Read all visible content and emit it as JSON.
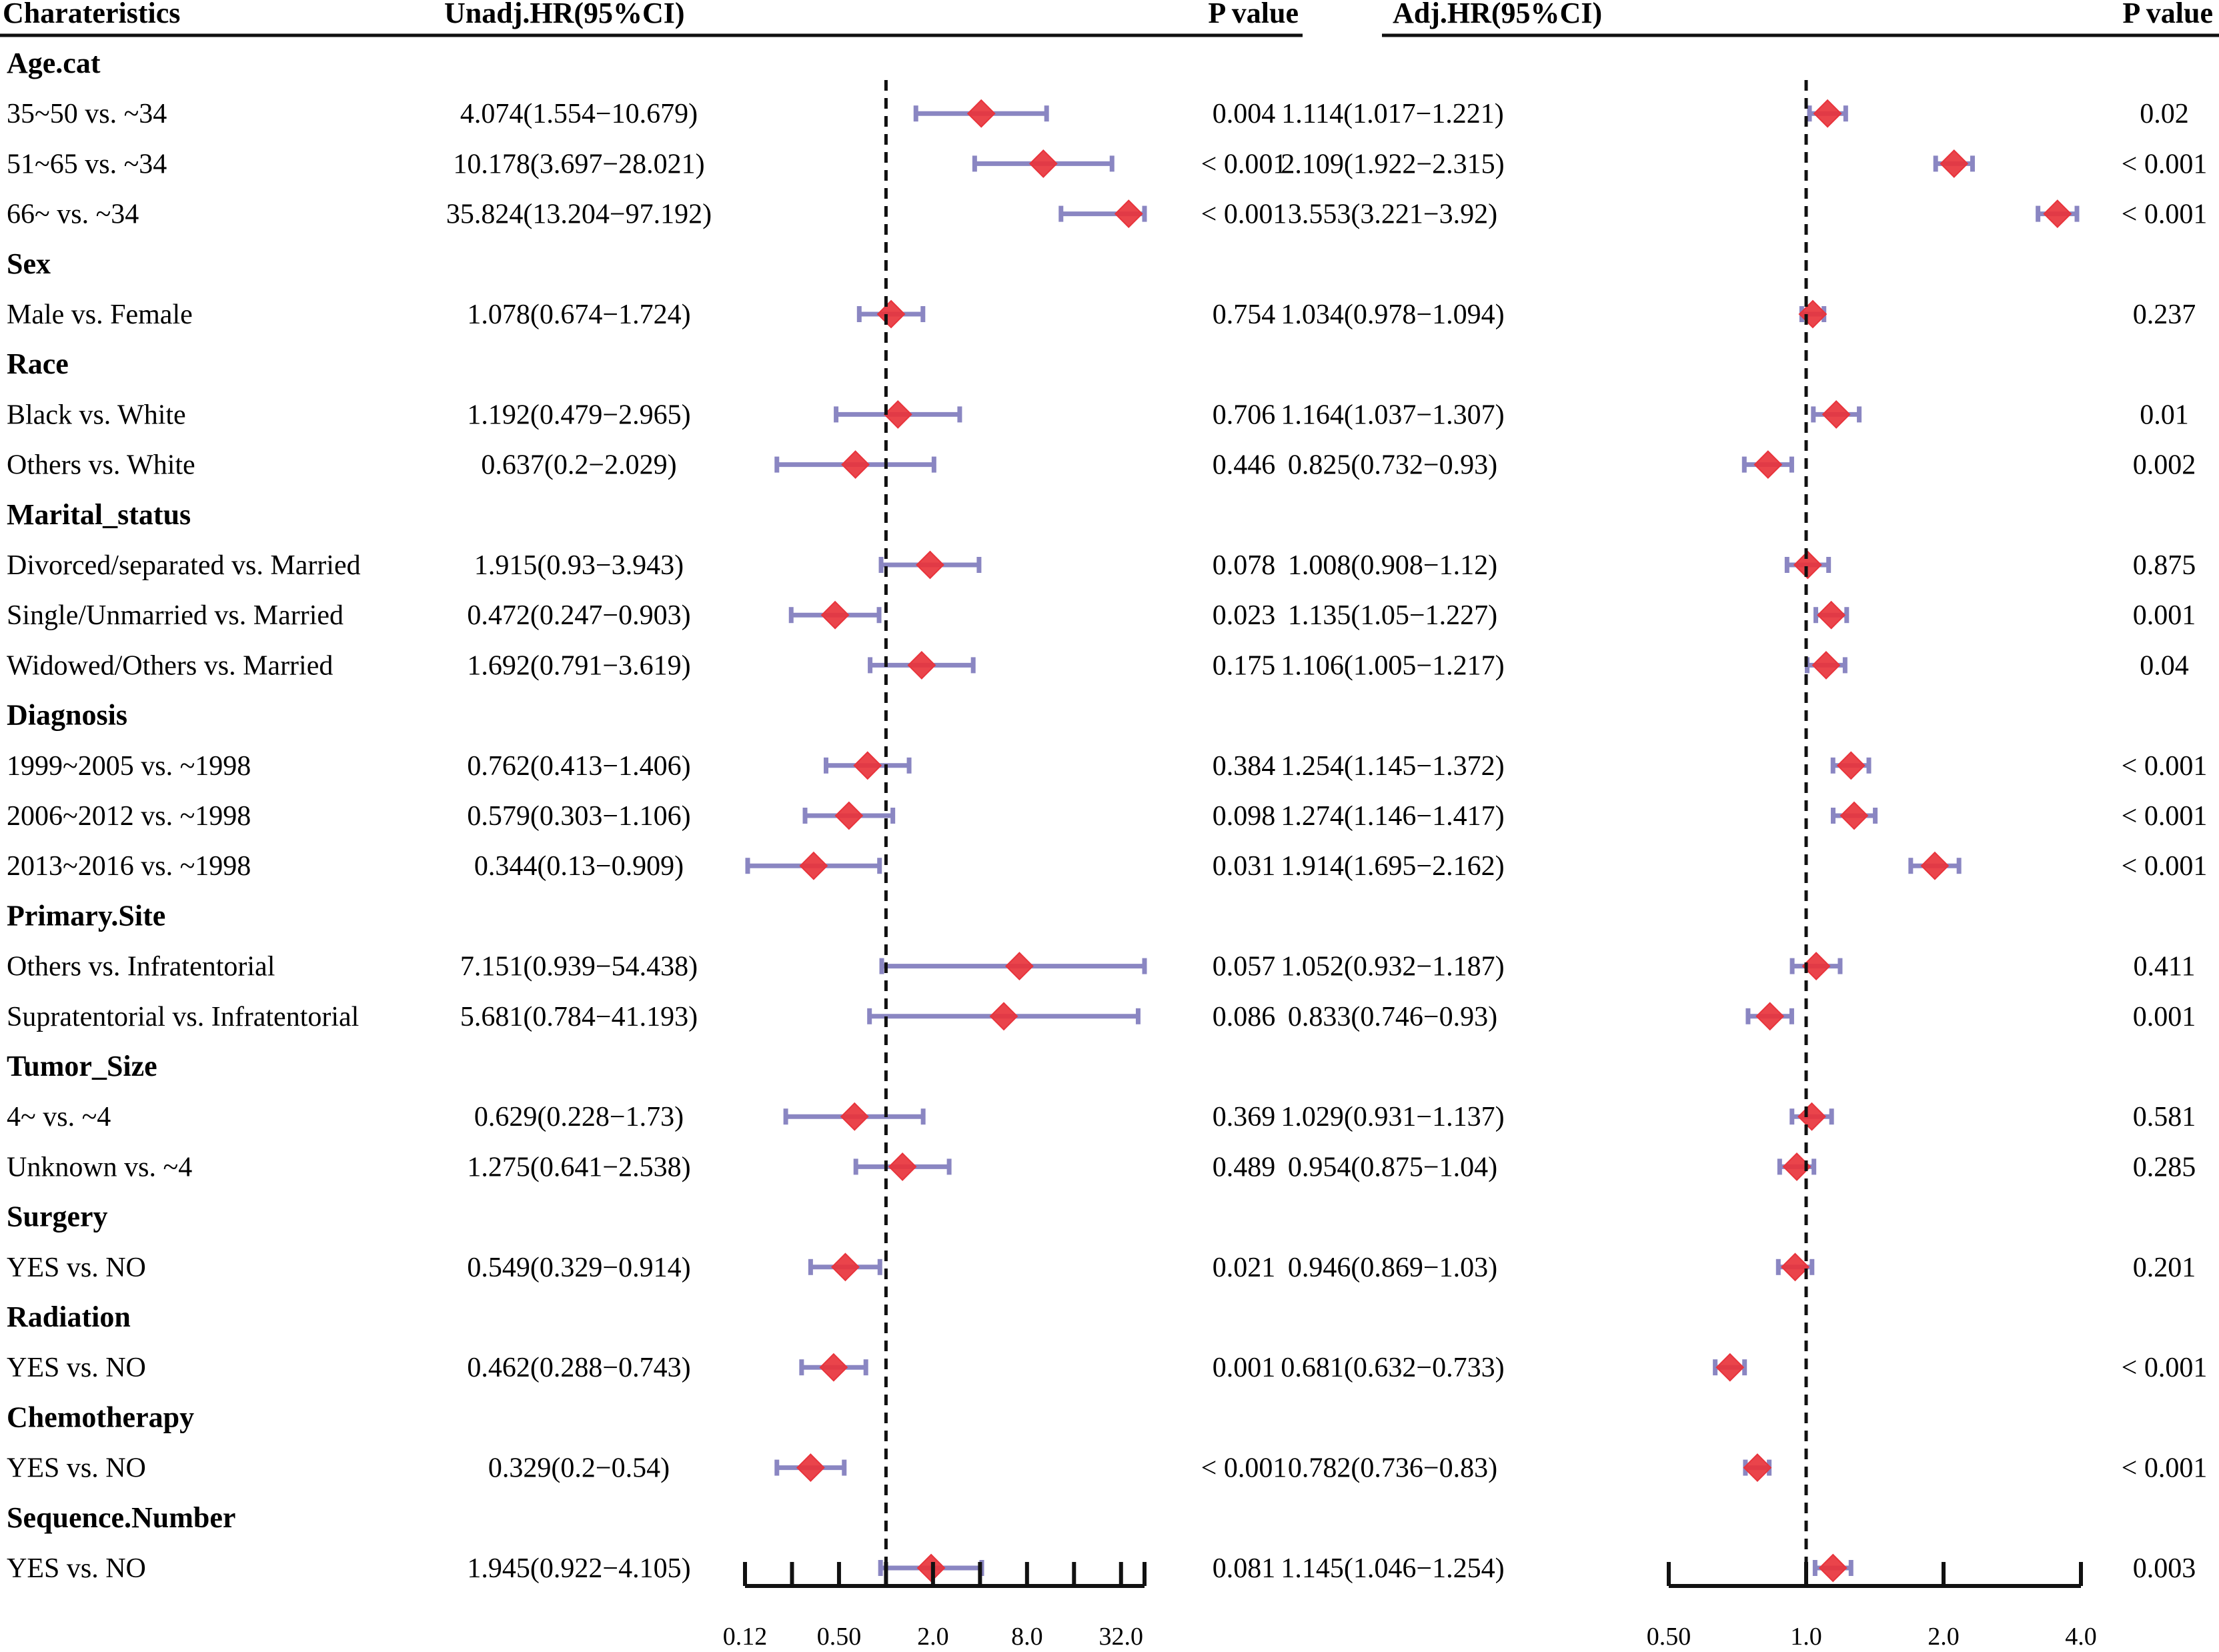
{
  "headers": {
    "characteristics": "Charateristics",
    "unadj": "Unadj.HR(95%CI)",
    "p_left": "P value",
    "adj": "Adj.HR(95%CI)",
    "p_right": "P value"
  },
  "colors": {
    "ci_line": "#8a86c2",
    "marker": "#e8343c",
    "ref_line": "#111111"
  },
  "chart_data": [
    {
      "type": "forest",
      "title": "Unadj.HR(95%CI)",
      "scale": "log2",
      "xlim": [
        0.125,
        45.25
      ],
      "ticks": [
        0.125,
        0.5,
        2.0,
        8.0,
        32.0
      ],
      "tick_labels": [
        "0.12",
        "0.50",
        "2.0",
        "8.0",
        "32.0"
      ],
      "reference": 1.0
    },
    {
      "type": "forest",
      "title": "Adj.HR(95%CI)",
      "scale": "log2",
      "xlim": [
        0.5,
        4.0
      ],
      "ticks": [
        0.5,
        1.0,
        2.0,
        4.0
      ],
      "tick_labels": [
        "0.50",
        "1.0",
        "2.0",
        "4.0"
      ],
      "reference": 1.0
    }
  ],
  "rows": [
    {
      "kind": "group",
      "label": "Age.cat"
    },
    {
      "kind": "item",
      "label": "35~50 vs. ~34",
      "unadj_text": "4.074(1.554−10.679)",
      "unadj": [
        4.074,
        1.554,
        10.679
      ],
      "p1": "0.004",
      "adj_text": "1.114(1.017−1.221)",
      "adj": [
        1.114,
        1.017,
        1.221
      ],
      "p2": "0.02"
    },
    {
      "kind": "item",
      "label": "51~65 vs. ~34",
      "unadj_text": "10.178(3.697−28.021)",
      "unadj": [
        10.178,
        3.697,
        28.021
      ],
      "p1": "< 0.001",
      "adj_text": "2.109(1.922−2.315)",
      "adj": [
        2.109,
        1.922,
        2.315
      ],
      "p2": "< 0.001"
    },
    {
      "kind": "item",
      "label": "66~ vs. ~34",
      "unadj_text": "35.824(13.204−97.192)",
      "unadj": [
        35.824,
        13.204,
        97.192
      ],
      "p1": "< 0.001",
      "adj_text": "3.553(3.221−3.92)",
      "adj": [
        3.553,
        3.221,
        3.92
      ],
      "p2": "< 0.001"
    },
    {
      "kind": "group",
      "label": "Sex"
    },
    {
      "kind": "item",
      "label": "Male vs. Female",
      "unadj_text": "1.078(0.674−1.724)",
      "unadj": [
        1.078,
        0.674,
        1.724
      ],
      "p1": "0.754",
      "adj_text": "1.034(0.978−1.094)",
      "adj": [
        1.034,
        0.978,
        1.094
      ],
      "p2": "0.237"
    },
    {
      "kind": "group",
      "label": "Race"
    },
    {
      "kind": "item",
      "label": "Black vs. White",
      "unadj_text": "1.192(0.479−2.965)",
      "unadj": [
        1.192,
        0.479,
        2.965
      ],
      "p1": "0.706",
      "adj_text": "1.164(1.037−1.307)",
      "adj": [
        1.164,
        1.037,
        1.307
      ],
      "p2": "0.01"
    },
    {
      "kind": "item",
      "label": "Others vs. White",
      "unadj_text": "0.637(0.2−2.029)",
      "unadj": [
        0.637,
        0.2,
        2.029
      ],
      "p1": "0.446",
      "adj_text": "0.825(0.732−0.93)",
      "adj": [
        0.825,
        0.732,
        0.93
      ],
      "p2": "0.002"
    },
    {
      "kind": "group",
      "label": "Marital_status"
    },
    {
      "kind": "item",
      "label": "Divorced/separated vs. Married",
      "unadj_text": "1.915(0.93−3.943)",
      "unadj": [
        1.915,
        0.93,
        3.943
      ],
      "p1": "0.078",
      "adj_text": "1.008(0.908−1.12)",
      "adj": [
        1.008,
        0.908,
        1.12
      ],
      "p2": "0.875"
    },
    {
      "kind": "item",
      "label": "Single/Unmarried vs. Married",
      "unadj_text": "0.472(0.247−0.903)",
      "unadj": [
        0.472,
        0.247,
        0.903
      ],
      "p1": "0.023",
      "adj_text": "1.135(1.05−1.227)",
      "adj": [
        1.135,
        1.05,
        1.227
      ],
      "p2": "0.001"
    },
    {
      "kind": "item",
      "label": "Widowed/Others vs. Married",
      "unadj_text": "1.692(0.791−3.619)",
      "unadj": [
        1.692,
        0.791,
        3.619
      ],
      "p1": "0.175",
      "adj_text": "1.106(1.005−1.217)",
      "adj": [
        1.106,
        1.005,
        1.217
      ],
      "p2": "0.04"
    },
    {
      "kind": "group",
      "label": "Diagnosis"
    },
    {
      "kind": "item",
      "label": "1999~2005 vs. ~1998",
      "unadj_text": "0.762(0.413−1.406)",
      "unadj": [
        0.762,
        0.413,
        1.406
      ],
      "p1": "0.384",
      "adj_text": "1.254(1.145−1.372)",
      "adj": [
        1.254,
        1.145,
        1.372
      ],
      "p2": "< 0.001"
    },
    {
      "kind": "item",
      "label": "2006~2012 vs. ~1998",
      "unadj_text": "0.579(0.303−1.106)",
      "unadj": [
        0.579,
        0.303,
        1.106
      ],
      "p1": "0.098",
      "adj_text": "1.274(1.146−1.417)",
      "adj": [
        1.274,
        1.146,
        1.417
      ],
      "p2": "< 0.001"
    },
    {
      "kind": "item",
      "label": "2013~2016 vs. ~1998",
      "unadj_text": "0.344(0.13−0.909)",
      "unadj": [
        0.344,
        0.13,
        0.909
      ],
      "p1": "0.031",
      "adj_text": "1.914(1.695−2.162)",
      "adj": [
        1.914,
        1.695,
        2.162
      ],
      "p2": "< 0.001"
    },
    {
      "kind": "group",
      "label": "Primary.Site"
    },
    {
      "kind": "item",
      "label": "Others vs. Infratentorial",
      "unadj_text": "7.151(0.939−54.438)",
      "unadj": [
        7.151,
        0.939,
        54.438
      ],
      "p1": "0.057",
      "adj_text": "1.052(0.932−1.187)",
      "adj": [
        1.052,
        0.932,
        1.187
      ],
      "p2": "0.411"
    },
    {
      "kind": "item",
      "label": "Supratentorial vs. Infratentorial",
      "unadj_text": "5.681(0.784−41.193)",
      "unadj": [
        5.681,
        0.784,
        41.193
      ],
      "p1": "0.086",
      "adj_text": "0.833(0.746−0.93)",
      "adj": [
        0.833,
        0.746,
        0.93
      ],
      "p2": "0.001"
    },
    {
      "kind": "group",
      "label": "Tumor_Size"
    },
    {
      "kind": "item",
      "label": "4~ vs. ~4",
      "unadj_text": "0.629(0.228−1.73)",
      "unadj": [
        0.629,
        0.228,
        1.73
      ],
      "p1": "0.369",
      "adj_text": "1.029(0.931−1.137)",
      "adj": [
        1.029,
        0.931,
        1.137
      ],
      "p2": "0.581"
    },
    {
      "kind": "item",
      "label": "Unknown vs. ~4",
      "unadj_text": "1.275(0.641−2.538)",
      "unadj": [
        1.275,
        0.641,
        2.538
      ],
      "p1": "0.489",
      "adj_text": "0.954(0.875−1.04)",
      "adj": [
        0.954,
        0.875,
        1.04
      ],
      "p2": "0.285"
    },
    {
      "kind": "group",
      "label": "Surgery"
    },
    {
      "kind": "item",
      "label": "YES vs. NO",
      "unadj_text": "0.549(0.329−0.914)",
      "unadj": [
        0.549,
        0.329,
        0.914
      ],
      "p1": "0.021",
      "adj_text": "0.946(0.869−1.03)",
      "adj": [
        0.946,
        0.869,
        1.03
      ],
      "p2": "0.201"
    },
    {
      "kind": "group",
      "label": "Radiation"
    },
    {
      "kind": "item",
      "label": "YES vs. NO",
      "unadj_text": "0.462(0.288−0.743)",
      "unadj": [
        0.462,
        0.288,
        0.743
      ],
      "p1": "0.001",
      "adj_text": "0.681(0.632−0.733)",
      "adj": [
        0.681,
        0.632,
        0.733
      ],
      "p2": "< 0.001"
    },
    {
      "kind": "group",
      "label": "Chemotherapy"
    },
    {
      "kind": "item",
      "label": "YES vs. NO",
      "unadj_text": "0.329(0.2−0.54)",
      "unadj": [
        0.329,
        0.2,
        0.54
      ],
      "p1": "< 0.001",
      "adj_text": "0.782(0.736−0.83)",
      "adj": [
        0.782,
        0.736,
        0.83
      ],
      "p2": "< 0.001"
    },
    {
      "kind": "group",
      "label": "Sequence.Number"
    },
    {
      "kind": "item",
      "label": "YES vs. NO",
      "unadj_text": "1.945(0.922−4.105)",
      "unadj": [
        1.945,
        0.922,
        4.105
      ],
      "p1": "0.081",
      "adj_text": "1.145(1.046−1.254)",
      "adj": [
        1.145,
        1.046,
        1.254
      ],
      "p2": "0.003"
    }
  ]
}
